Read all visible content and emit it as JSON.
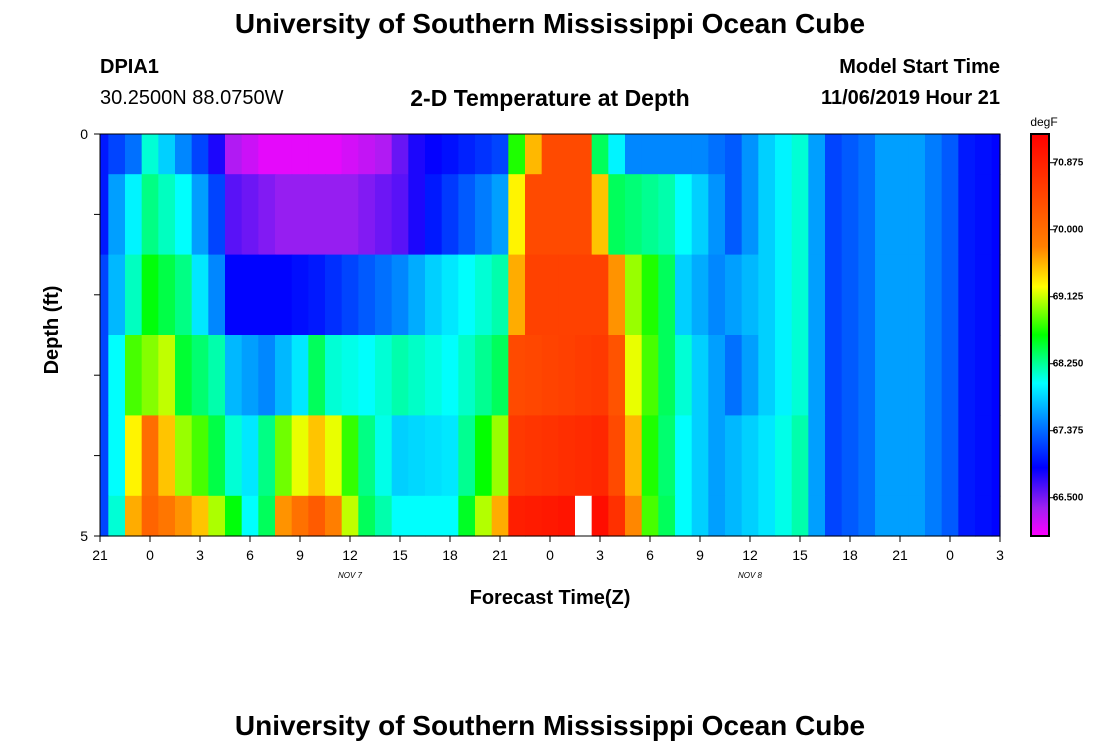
{
  "header": {
    "title": "University of Southern Mississippi Ocean Cube",
    "station": "DPIA1",
    "coordinates": "30.2500N 88.0750W",
    "plot_title": "2-D Temperature at Depth",
    "model_start_label": "Model Start Time",
    "model_start_value": "11/06/2019 Hour 21"
  },
  "footer": {
    "title": "University of Southern Mississippi Ocean Cube"
  },
  "chart_data": {
    "type": "heatmap",
    "title": "2-D Temperature at Depth",
    "xlabel": "Forecast Time(Z)",
    "ylabel": "Depth (ft)",
    "x_hours": [
      0,
      54
    ],
    "x_tick_labels": [
      "21",
      "0",
      "3",
      "6",
      "9",
      "12",
      "15",
      "18",
      "21",
      "0",
      "3",
      "6",
      "9",
      "12",
      "15",
      "18",
      "21",
      "0",
      "3"
    ],
    "day_labels": [
      {
        "text": "NOV 7",
        "hour": 15
      },
      {
        "text": "NOV 8",
        "hour": 39
      }
    ],
    "y_tick_labels": [
      "0",
      "5"
    ],
    "ylim": [
      0,
      5
    ],
    "depth_levels": [
      0,
      1,
      2,
      3,
      4,
      5
    ],
    "colorbar": {
      "unit": "degF",
      "min": 66.0,
      "max": 71.25,
      "tick_labels": [
        "70.875",
        "70.000",
        "69.125",
        "68.250",
        "67.375",
        "66.500"
      ],
      "tick_values": [
        70.875,
        70.0,
        69.125,
        68.25,
        67.375,
        66.5
      ]
    },
    "heatmap_keys": {
      "0": [
        [
          0,
          67.0
        ],
        [
          2,
          67.4
        ],
        [
          3,
          68.1
        ],
        [
          6,
          67.2
        ],
        [
          7,
          66.8
        ],
        [
          8,
          66.3
        ],
        [
          10,
          66.1
        ],
        [
          14,
          66.1
        ],
        [
          17,
          66.3
        ],
        [
          19,
          66.8
        ],
        [
          24,
          67.2
        ],
        [
          25,
          68.7
        ],
        [
          27,
          70.4
        ],
        [
          29,
          70.4
        ],
        [
          30,
          68.4
        ],
        [
          32,
          67.5
        ],
        [
          36,
          67.5
        ],
        [
          38,
          67.3
        ],
        [
          40,
          67.8
        ],
        [
          42,
          68.1
        ],
        [
          43,
          67.6
        ],
        [
          44,
          67.2
        ],
        [
          46,
          67.4
        ],
        [
          47,
          67.6
        ],
        [
          49,
          67.6
        ],
        [
          51,
          67.3
        ],
        [
          52,
          67.0
        ],
        [
          54,
          66.9
        ]
      ],
      "1": [
        [
          0,
          67.0
        ],
        [
          1,
          67.6
        ],
        [
          3,
          68.3
        ],
        [
          5,
          68.0
        ],
        [
          7,
          67.2
        ],
        [
          8,
          66.6
        ],
        [
          11,
          66.4
        ],
        [
          15,
          66.4
        ],
        [
          18,
          66.6
        ],
        [
          20,
          67.0
        ],
        [
          24,
          67.6
        ],
        [
          25,
          69.3
        ],
        [
          26,
          70.4
        ],
        [
          29,
          70.4
        ],
        [
          30,
          69.5
        ],
        [
          31,
          68.4
        ],
        [
          34,
          68.2
        ],
        [
          36,
          67.8
        ],
        [
          38,
          67.3
        ],
        [
          40,
          67.8
        ],
        [
          42,
          68.1
        ],
        [
          43,
          67.6
        ],
        [
          44,
          67.2
        ],
        [
          46,
          67.4
        ],
        [
          47,
          67.6
        ],
        [
          49,
          67.6
        ],
        [
          51,
          67.3
        ],
        [
          52,
          67.0
        ],
        [
          54,
          66.9
        ]
      ],
      "2": [
        [
          0,
          67.2
        ],
        [
          1,
          67.7
        ],
        [
          3,
          68.6
        ],
        [
          5,
          68.3
        ],
        [
          7,
          67.5
        ],
        [
          8,
          66.9
        ],
        [
          11,
          66.9
        ],
        [
          13,
          67.0
        ],
        [
          16,
          67.3
        ],
        [
          18,
          67.5
        ],
        [
          20,
          67.8
        ],
        [
          24,
          68.2
        ],
        [
          25,
          69.6
        ],
        [
          26,
          70.5
        ],
        [
          30,
          70.5
        ],
        [
          31,
          69.7
        ],
        [
          32,
          69.0
        ],
        [
          34,
          68.4
        ],
        [
          35,
          67.8
        ],
        [
          37,
          67.5
        ],
        [
          40,
          67.8
        ],
        [
          42,
          68.1
        ],
        [
          43,
          67.6
        ],
        [
          44,
          67.2
        ],
        [
          46,
          67.4
        ],
        [
          47,
          67.6
        ],
        [
          49,
          67.6
        ],
        [
          51,
          67.3
        ],
        [
          52,
          67.0
        ],
        [
          54,
          66.9
        ]
      ],
      "3": [
        [
          0,
          67.2
        ],
        [
          1,
          68.0
        ],
        [
          2,
          68.8
        ],
        [
          4,
          69.1
        ],
        [
          5,
          68.5
        ],
        [
          7,
          68.2
        ],
        [
          8,
          67.7
        ],
        [
          10,
          67.5
        ],
        [
          12,
          67.9
        ],
        [
          13,
          68.4
        ],
        [
          14,
          68.1
        ],
        [
          16,
          68.0
        ],
        [
          18,
          68.2
        ],
        [
          21,
          68.0
        ],
        [
          24,
          68.4
        ],
        [
          25,
          70.4
        ],
        [
          30,
          70.6
        ],
        [
          31,
          70.3
        ],
        [
          32,
          69.2
        ],
        [
          34,
          68.4
        ],
        [
          36,
          67.8
        ],
        [
          38,
          67.4
        ],
        [
          40,
          67.8
        ],
        [
          42,
          68.1
        ],
        [
          43,
          67.6
        ],
        [
          44,
          67.2
        ],
        [
          46,
          67.4
        ],
        [
          47,
          67.6
        ],
        [
          49,
          67.6
        ],
        [
          51,
          67.3
        ],
        [
          52,
          67.0
        ],
        [
          54,
          66.9
        ]
      ],
      "4": [
        [
          0,
          67.2
        ],
        [
          1,
          68.0
        ],
        [
          2,
          69.3
        ],
        [
          3,
          70.0
        ],
        [
          5,
          69.0
        ],
        [
          6,
          68.8
        ],
        [
          8,
          68.1
        ],
        [
          9,
          67.9
        ],
        [
          10,
          68.3
        ],
        [
          11,
          68.9
        ],
        [
          13,
          69.5
        ],
        [
          14,
          69.2
        ],
        [
          16,
          68.3
        ],
        [
          18,
          67.8
        ],
        [
          21,
          67.9
        ],
        [
          24,
          69.0
        ],
        [
          25,
          70.6
        ],
        [
          30,
          70.8
        ],
        [
          31,
          70.4
        ],
        [
          33,
          68.7
        ],
        [
          35,
          68.0
        ],
        [
          37,
          67.6
        ],
        [
          40,
          67.9
        ],
        [
          42,
          68.2
        ],
        [
          43,
          67.6
        ],
        [
          44,
          67.2
        ],
        [
          46,
          67.4
        ],
        [
          47,
          67.6
        ],
        [
          49,
          67.6
        ],
        [
          51,
          67.3
        ],
        [
          52,
          67.0
        ],
        [
          54,
          66.9
        ]
      ],
      "5": [
        [
          0,
          67.2
        ],
        [
          1,
          68.1
        ],
        [
          2,
          69.6
        ],
        [
          3,
          70.1
        ],
        [
          6,
          69.5
        ],
        [
          8,
          68.6
        ],
        [
          9,
          68.0
        ],
        [
          10,
          68.4
        ],
        [
          11,
          69.7
        ],
        [
          13,
          70.2
        ],
        [
          14,
          69.8
        ],
        [
          16,
          68.4
        ],
        [
          18,
          68.0
        ],
        [
          21,
          68.0
        ],
        [
          24,
          69.6
        ],
        [
          25,
          70.9
        ],
        [
          30,
          71.1
        ],
        [
          31,
          70.7
        ],
        [
          33,
          68.8
        ],
        [
          35,
          68.0
        ],
        [
          37,
          67.6
        ],
        [
          40,
          67.9
        ],
        [
          42,
          68.2
        ],
        [
          43,
          67.6
        ],
        [
          44,
          67.2
        ],
        [
          46,
          67.4
        ],
        [
          47,
          67.6
        ],
        [
          49,
          67.6
        ],
        [
          51,
          67.3
        ],
        [
          52,
          67.0
        ],
        [
          54,
          66.9
        ]
      ]
    },
    "missing_data": {
      "hour": 29,
      "depth": 5
    },
    "grid": false
  }
}
